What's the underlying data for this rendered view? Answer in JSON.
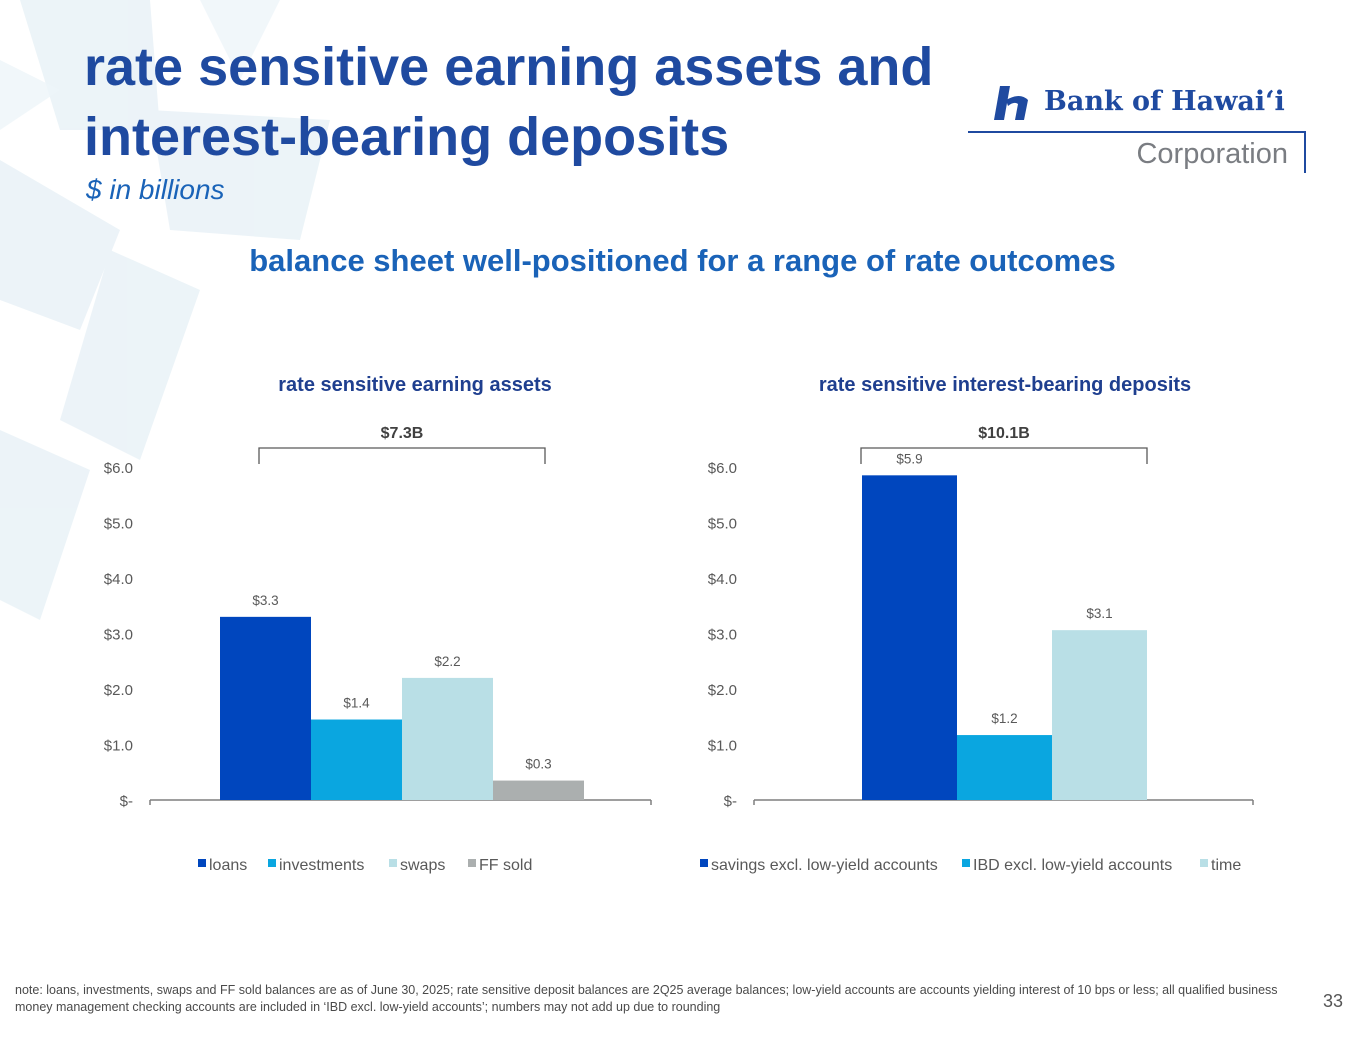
{
  "header": {
    "title_line1": "rate sensitive earning assets and",
    "title_line2": "interest-bearing deposits",
    "subtitle": "$ in billions"
  },
  "logo": {
    "name": "Bank of Hawai‘i",
    "corporation": "Corporation"
  },
  "headline": "balance sheet well-positioned for a range of rate outcomes",
  "colors": {
    "dark_blue": "#0046be",
    "mid_blue": "#0aa6e0",
    "light_blue": "#b9dfe6",
    "gray": "#abafaf",
    "title_blue": "#1f4aa0"
  },
  "chart_data": [
    {
      "type": "bar",
      "title": "rate sensitive earning assets",
      "bracket_label": "$7.3B",
      "categories": [
        ""
      ],
      "series": [
        {
          "name": "loans",
          "values": [
            3.3
          ],
          "label": "$3.3",
          "color": "#0046be"
        },
        {
          "name": "investments",
          "values": [
            1.45
          ],
          "label": "$1.4",
          "color": "#0aa6e0"
        },
        {
          "name": "swaps",
          "values": [
            2.2
          ],
          "label": "$2.2",
          "color": "#b9dfe6"
        },
        {
          "name": "FF sold",
          "values": [
            0.35
          ],
          "label": "$0.3",
          "color": "#abafaf"
        }
      ],
      "y_ticks": [
        0,
        1,
        2,
        3,
        4,
        5,
        6
      ],
      "y_tick_labels": [
        "$-",
        "$1.0",
        "$2.0",
        "$3.0",
        "$4.0",
        "$5.0",
        "$6.0"
      ],
      "ylim": [
        0,
        6
      ],
      "legend": "bottom",
      "grid": false
    },
    {
      "type": "bar",
      "title": "rate sensitive interest-bearing deposits",
      "bracket_label": "$10.1B",
      "categories": [
        ""
      ],
      "series": [
        {
          "name": "savings excl. low-yield accounts",
          "values": [
            5.85
          ],
          "label": "$5.9",
          "color": "#0046be"
        },
        {
          "name": "IBD excl. low-yield accounts",
          "values": [
            1.17
          ],
          "label": "$1.2",
          "color": "#0aa6e0"
        },
        {
          "name": "time",
          "values": [
            3.06
          ],
          "label": "$3.1",
          "color": "#b9dfe6"
        }
      ],
      "y_ticks": [
        0,
        1,
        2,
        3,
        4,
        5,
        6
      ],
      "y_tick_labels": [
        "$-",
        "$1.0",
        "$2.0",
        "$3.0",
        "$4.0",
        "$5.0",
        "$6.0"
      ],
      "ylim": [
        0,
        6
      ],
      "legend": "bottom",
      "grid": false
    }
  ],
  "footnote": "note: loans, investments, swaps and FF sold balances are as of June 30, 2025; rate sensitive deposit balances are 2Q25 average balances; low-yield accounts are accounts yielding interest of 10 bps or less; all qualified business money management checking accounts are included in ‘IBD excl. low-yield accounts’; numbers may not add up due to rounding",
  "page_number": "33"
}
